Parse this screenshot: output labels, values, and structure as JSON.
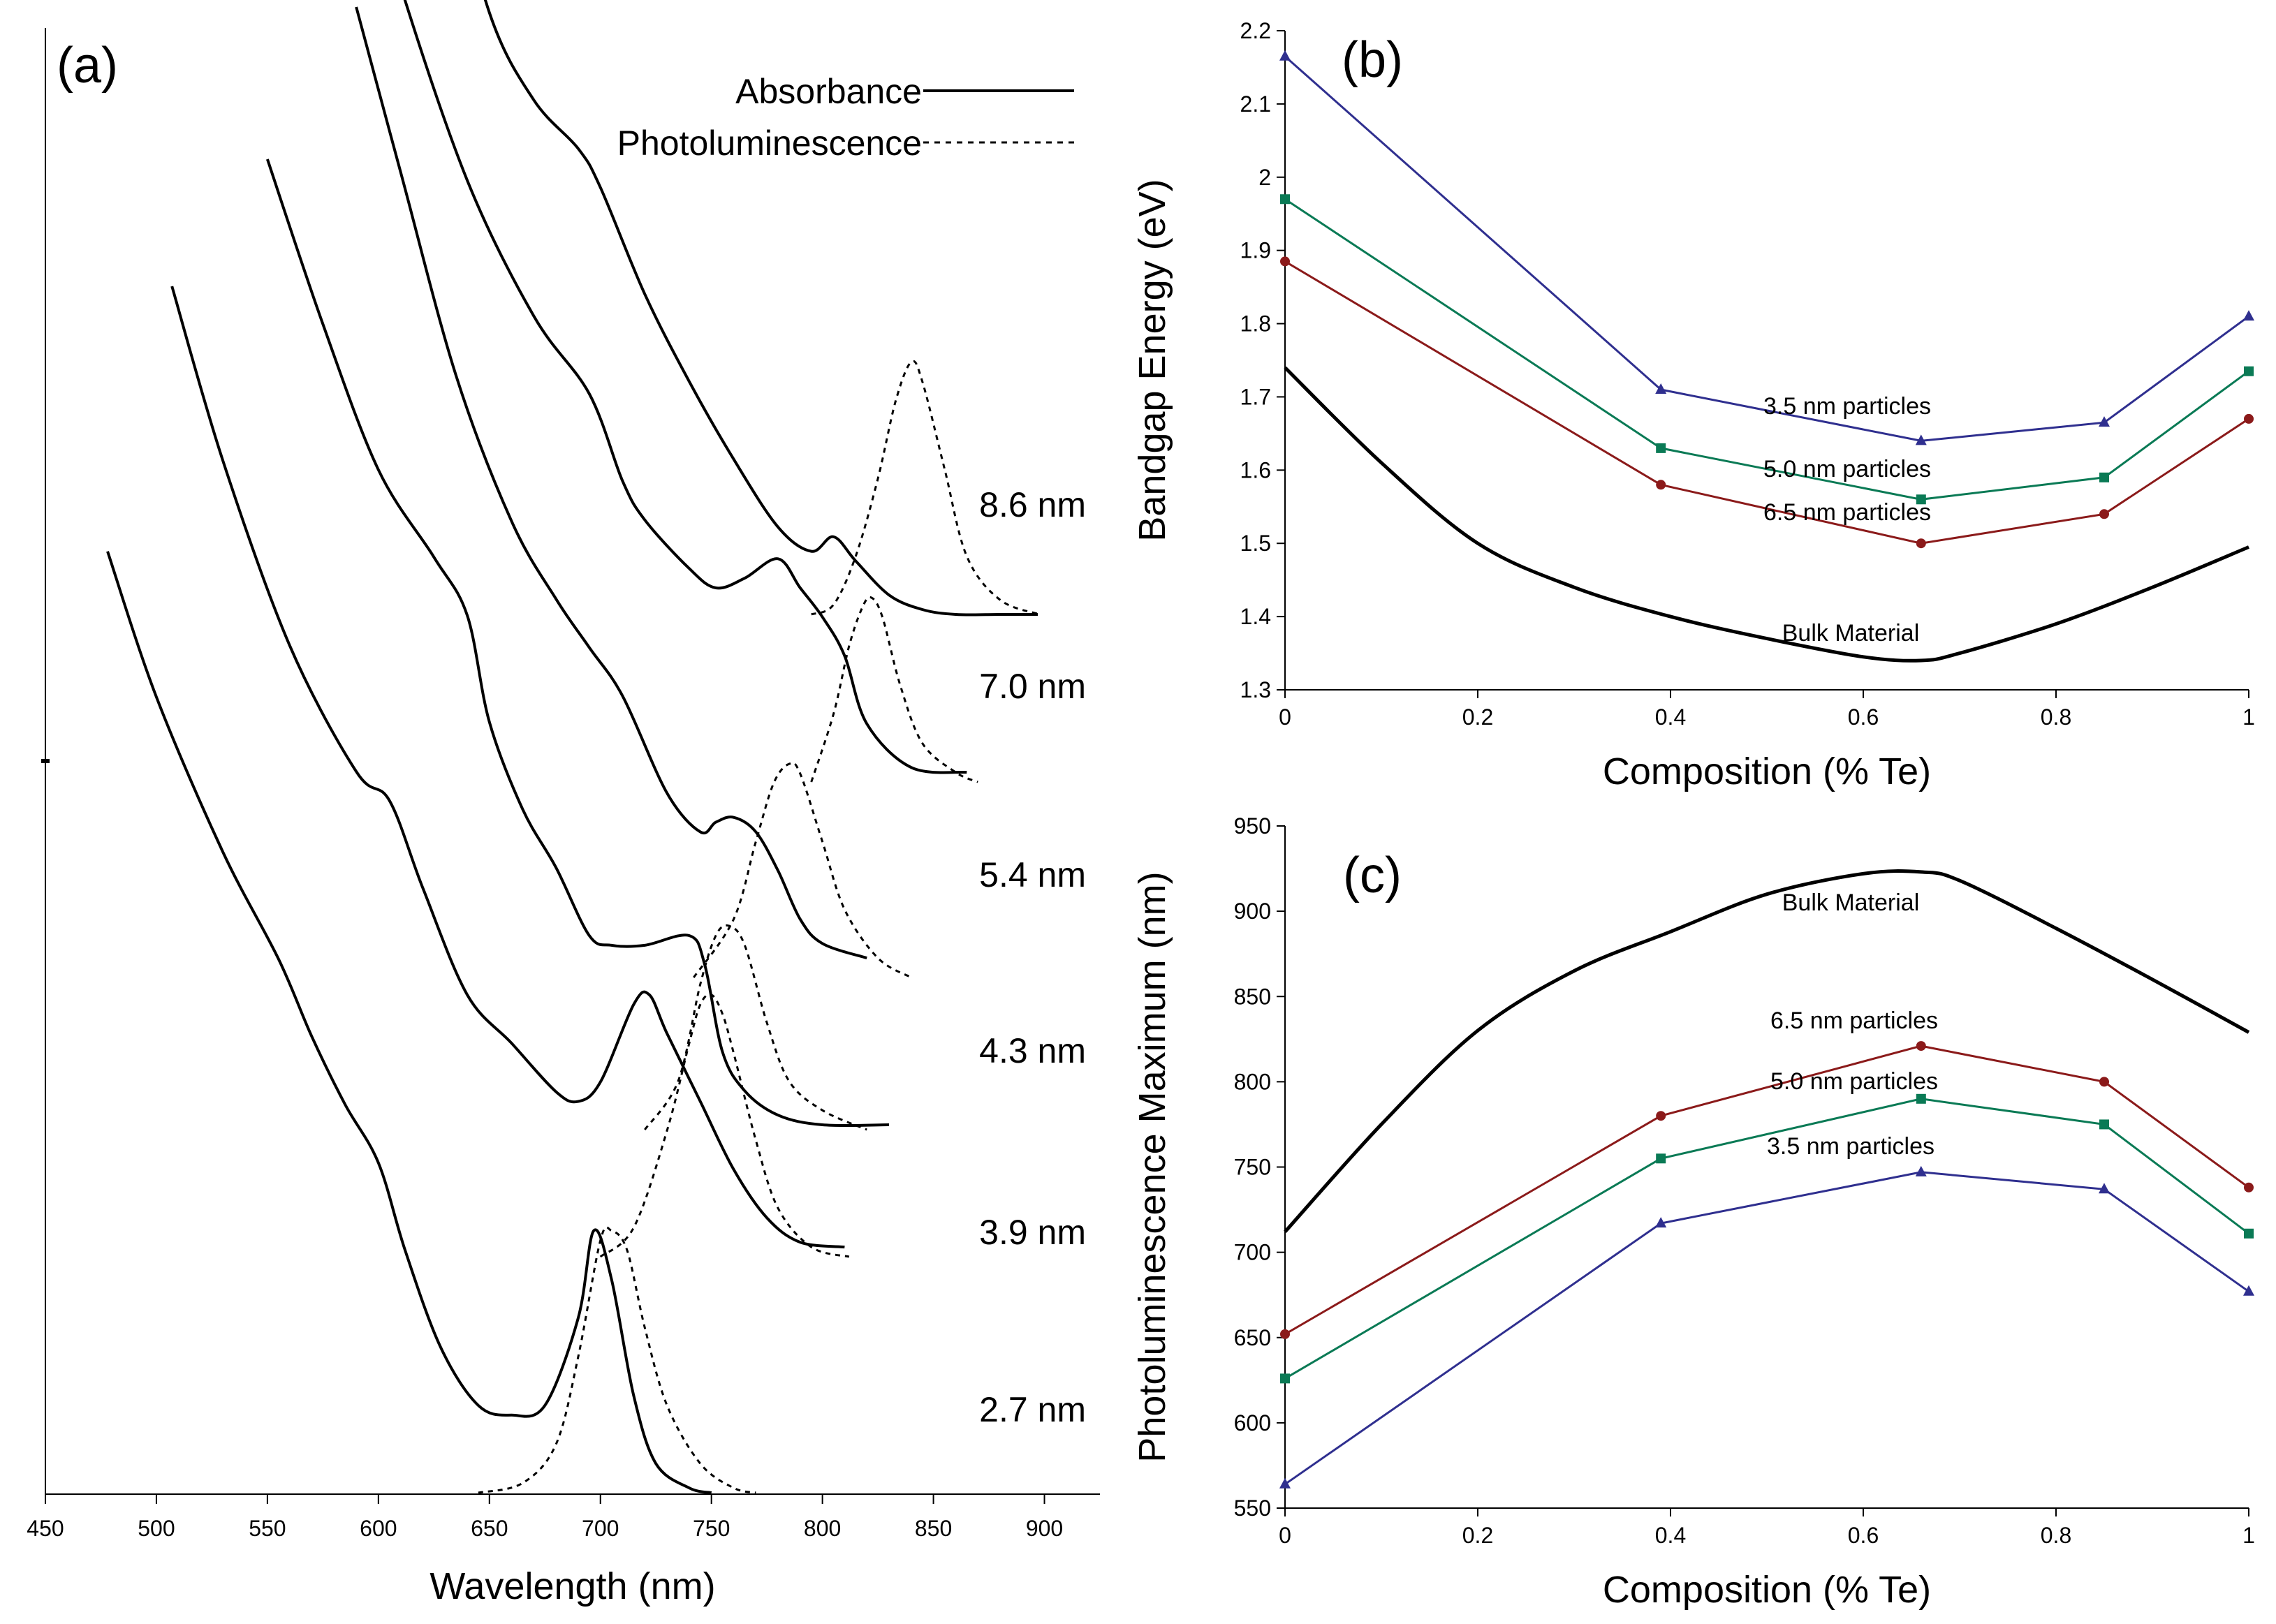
{
  "chart_data": [
    {
      "type": "line",
      "panel_label": "(a)",
      "title": "",
      "xlabel": "Wavelength (nm)",
      "ylabel": "",
      "xlim": [
        450,
        925
      ],
      "xticks": [
        "450",
        "500",
        "550",
        "600",
        "650",
        "700",
        "750",
        "800",
        "850",
        "900"
      ],
      "legend": {
        "placement": "top-right",
        "absorbance_label": "Absorbance",
        "pl_label": "Photoluminescence"
      },
      "series": [
        {
          "size": "2.7 nm",
          "absorbance_peak_nm": 697,
          "pl_peak_nm": 705,
          "abs_x": [
            478,
            500,
            530,
            555,
            570,
            585,
            600,
            612,
            628,
            645,
            660,
            675,
            690,
            697,
            705,
            715,
            725,
            740,
            750
          ],
          "abs_y": [
            0.97,
            0.82,
            0.66,
            0.55,
            0.47,
            0.4,
            0.34,
            0.25,
            0.15,
            0.09,
            0.08,
            0.09,
            0.18,
            0.27,
            0.22,
            0.1,
            0.03,
            0.005,
            0.0
          ],
          "pl_x": [
            645,
            665,
            680,
            690,
            700,
            705,
            712,
            720,
            730,
            745,
            760,
            770
          ],
          "pl_y": [
            0.0,
            0.01,
            0.05,
            0.14,
            0.26,
            0.27,
            0.25,
            0.17,
            0.09,
            0.03,
            0.005,
            0.0
          ]
        },
        {
          "size": "3.9 nm",
          "absorbance_peak_nm": 722,
          "pl_peak_nm": 750,
          "abs_x": [
            507,
            530,
            560,
            590,
            605,
            620,
            640,
            660,
            680,
            690,
            700,
            715,
            722,
            730,
            745,
            760,
            775,
            790,
            810
          ],
          "abs_y": [
            1.0,
            0.82,
            0.63,
            0.5,
            0.47,
            0.38,
            0.27,
            0.22,
            0.17,
            0.16,
            0.18,
            0.26,
            0.27,
            0.23,
            0.16,
            0.09,
            0.04,
            0.015,
            0.01
          ],
          "pl_x": [
            700,
            715,
            730,
            740,
            745,
            750,
            755,
            760,
            770,
            780,
            795,
            812
          ],
          "pl_y": [
            0.0,
            0.03,
            0.13,
            0.22,
            0.26,
            0.27,
            0.25,
            0.21,
            0.12,
            0.05,
            0.01,
            0.0
          ]
        },
        {
          "size": "4.3 nm",
          "absorbance_peak_nm": 745,
          "pl_peak_nm": 760,
          "abs_x": [
            550,
            575,
            600,
            625,
            640,
            650,
            665,
            680,
            695,
            705,
            720,
            740,
            747,
            755,
            765,
            780,
            800,
            830
          ],
          "abs_y": [
            1.0,
            0.83,
            0.68,
            0.59,
            0.53,
            0.42,
            0.33,
            0.27,
            0.2,
            0.19,
            0.19,
            0.2,
            0.17,
            0.08,
            0.04,
            0.015,
            0.005,
            0.005
          ],
          "pl_x": [
            720,
            735,
            745,
            752,
            758,
            765,
            775,
            785,
            800,
            820
          ],
          "pl_y": [
            0.0,
            0.05,
            0.15,
            0.2,
            0.21,
            0.19,
            0.11,
            0.05,
            0.02,
            0.0
          ]
        },
        {
          "size": "5.4 nm",
          "absorbance_peak_nm": 760,
          "pl_peak_nm": 785,
          "abs_x": [
            590,
            610,
            635,
            660,
            680,
            695,
            710,
            730,
            745,
            752,
            760,
            770,
            780,
            790,
            800,
            820
          ],
          "abs_y": [
            1.0,
            0.83,
            0.62,
            0.47,
            0.39,
            0.34,
            0.29,
            0.19,
            0.15,
            0.16,
            0.165,
            0.15,
            0.11,
            0.06,
            0.035,
            0.02
          ],
          "pl_x": [
            742,
            760,
            770,
            778,
            785,
            790,
            800,
            810,
            825,
            840
          ],
          "pl_y": [
            0.0,
            0.06,
            0.14,
            0.2,
            0.22,
            0.21,
            0.14,
            0.07,
            0.02,
            0.0
          ]
        },
        {
          "size": "7.0 nm",
          "absorbance_peak_nm": 780,
          "pl_peak_nm": 820,
          "abs_x": [
            588,
            610,
            640,
            670,
            695,
            710,
            720,
            740,
            752,
            765,
            780,
            790,
            800,
            810,
            820,
            840,
            865
          ],
          "abs_y": [
            1.0,
            0.82,
            0.62,
            0.48,
            0.4,
            0.31,
            0.27,
            0.22,
            0.2,
            0.21,
            0.23,
            0.2,
            0.17,
            0.13,
            0.06,
            0.015,
            0.01
          ],
          "pl_x": [
            795,
            805,
            812,
            818,
            822,
            827,
            835,
            845,
            860,
            870
          ],
          "pl_y": [
            0.0,
            0.07,
            0.14,
            0.18,
            0.19,
            0.17,
            0.1,
            0.04,
            0.01,
            0.0
          ]
        },
        {
          "size": "8.6 nm",
          "absorbance_peak_nm": 805,
          "pl_peak_nm": 840,
          "abs_x": [
            610,
            630,
            650,
            670,
            690,
            700,
            720,
            740,
            760,
            780,
            795,
            805,
            815,
            830,
            845,
            860,
            880,
            897
          ],
          "abs_y": [
            1.0,
            0.8,
            0.62,
            0.53,
            0.48,
            0.44,
            0.33,
            0.24,
            0.16,
            0.09,
            0.065,
            0.08,
            0.055,
            0.02,
            0.005,
            0.0,
            0.0,
            0.0
          ],
          "pl_x": [
            795,
            805,
            815,
            825,
            833,
            840,
            845,
            855,
            865,
            880,
            898
          ],
          "pl_y": [
            0.0,
            0.01,
            0.06,
            0.14,
            0.22,
            0.26,
            0.24,
            0.15,
            0.06,
            0.015,
            0.0
          ]
        }
      ]
    },
    {
      "type": "line",
      "panel_label": "(b)",
      "title": "",
      "xlabel": "Composition (% Te)",
      "ylabel": "Bandgap Energy (eV)",
      "xlim": [
        0,
        1
      ],
      "ylim": [
        1.3,
        2.2
      ],
      "xticks": [
        0,
        0.2,
        0.4,
        0.6,
        0.8,
        1
      ],
      "xtick_labels": [
        "0",
        "0.2",
        "0.4",
        "0.6",
        "0.8",
        "1"
      ],
      "yticks": [
        1.3,
        1.4,
        1.5,
        1.6,
        1.7,
        1.8,
        1.9,
        2.0,
        2.1,
        2.2
      ],
      "ytick_labels": [
        "1.3",
        "1.4",
        "1.5",
        "1.6",
        "1.7",
        "1.8",
        "1.9",
        "2",
        "2.1",
        "2.2"
      ],
      "series": [
        {
          "name": "3.5 nm particles",
          "color": "#2f2f8f",
          "marker": "triangle",
          "x": [
            0,
            0.39,
            0.66,
            0.85,
            1
          ],
          "y": [
            2.165,
            1.71,
            1.64,
            1.665,
            1.81
          ]
        },
        {
          "name": "5.0 nm particles",
          "color": "#0a7a55",
          "marker": "square",
          "x": [
            0,
            0.39,
            0.66,
            0.85,
            1
          ],
          "y": [
            1.97,
            1.63,
            1.56,
            1.59,
            1.735
          ]
        },
        {
          "name": "6.5 nm particles",
          "color": "#8b1a1a",
          "marker": "circle",
          "x": [
            0,
            0.39,
            0.66,
            0.85,
            1
          ],
          "y": [
            1.885,
            1.58,
            1.5,
            1.54,
            1.67
          ]
        },
        {
          "name": "Bulk Material",
          "color": "#000000",
          "marker": "none",
          "x": [
            0,
            0.1,
            0.2,
            0.3,
            0.4,
            0.5,
            0.6,
            0.66,
            0.7,
            0.8,
            0.9,
            1
          ],
          "y": [
            1.74,
            1.61,
            1.5,
            1.44,
            1.4,
            1.37,
            1.345,
            1.34,
            1.35,
            1.39,
            1.44,
            1.495
          ]
        }
      ]
    },
    {
      "type": "line",
      "panel_label": "(c)",
      "title": "",
      "xlabel": "Composition (% Te)",
      "ylabel": "Photoluminescence Maximum (nm)",
      "xlim": [
        0,
        1
      ],
      "ylim": [
        550,
        950
      ],
      "xticks": [
        0,
        0.2,
        0.4,
        0.6,
        0.8,
        1
      ],
      "xtick_labels": [
        "0",
        "0.2",
        "0.4",
        "0.6",
        "0.8",
        "1"
      ],
      "yticks": [
        550,
        600,
        650,
        700,
        750,
        800,
        850,
        900,
        950
      ],
      "ytick_labels": [
        "550",
        "600",
        "650",
        "700",
        "750",
        "800",
        "850",
        "900",
        "950"
      ],
      "series": [
        {
          "name": "Bulk Material",
          "color": "#000000",
          "marker": "none",
          "x": [
            0,
            0.1,
            0.2,
            0.3,
            0.4,
            0.5,
            0.6,
            0.66,
            0.7,
            0.8,
            0.9,
            1
          ],
          "y": [
            712,
            775,
            830,
            865,
            888,
            910,
            922,
            923,
            918,
            890,
            860,
            829
          ]
        },
        {
          "name": "6.5 nm particles",
          "color": "#8b1a1a",
          "marker": "circle",
          "x": [
            0,
            0.39,
            0.66,
            0.85,
            1
          ],
          "y": [
            652,
            780,
            821,
            800,
            738
          ]
        },
        {
          "name": "5.0 nm particles",
          "color": "#0a7a55",
          "marker": "square",
          "x": [
            0,
            0.39,
            0.66,
            0.85,
            1
          ],
          "y": [
            626,
            755,
            790,
            775,
            711
          ]
        },
        {
          "name": "3.5 nm particles",
          "color": "#2f2f8f",
          "marker": "triangle",
          "x": [
            0,
            0.39,
            0.66,
            0.85,
            1
          ],
          "y": [
            564,
            717,
            747,
            737,
            677
          ]
        }
      ]
    }
  ]
}
